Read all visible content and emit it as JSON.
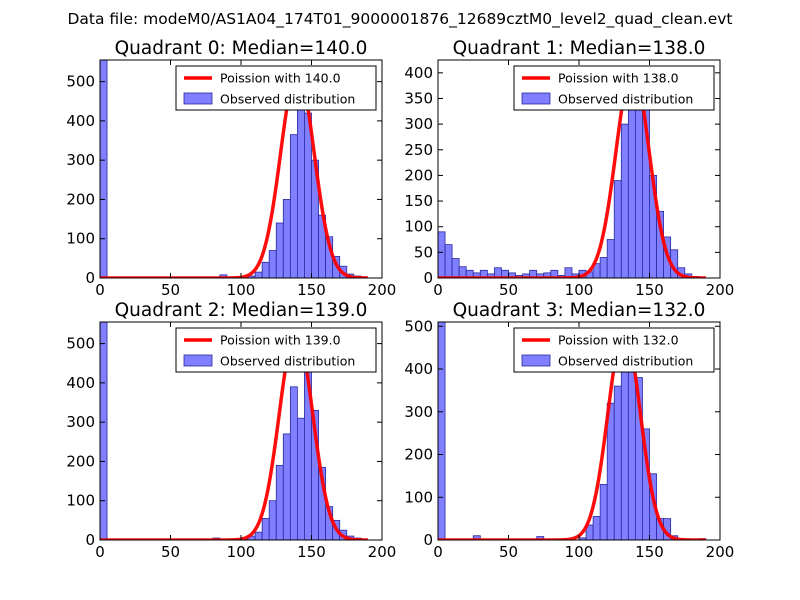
{
  "suptitle": "Data file: modeM0/AS1A04_174T01_9000001876_12689cztM0_level2_quad_clean.evt",
  "colors": {
    "fit_line": "#ff0000",
    "bar_fill": "#7f7fff",
    "bar_edge": "#2a2aa0"
  },
  "chart_data": [
    {
      "type": "bar",
      "title": "Quadrant 0: Median=140.0",
      "xlim": [
        0,
        200
      ],
      "ylim": [
        0,
        555
      ],
      "xticks": [
        0,
        50,
        100,
        150,
        200
      ],
      "yticks": [
        0,
        100,
        200,
        300,
        400,
        500
      ],
      "bin_width": 5,
      "bins": [
        {
          "x": 0,
          "y": 555
        },
        {
          "x": 85,
          "y": 8
        },
        {
          "x": 105,
          "y": 5
        },
        {
          "x": 110,
          "y": 15
        },
        {
          "x": 115,
          "y": 40
        },
        {
          "x": 120,
          "y": 70
        },
        {
          "x": 125,
          "y": 140
        },
        {
          "x": 130,
          "y": 200
        },
        {
          "x": 135,
          "y": 365
        },
        {
          "x": 140,
          "y": 530
        },
        {
          "x": 145,
          "y": 420
        },
        {
          "x": 150,
          "y": 300
        },
        {
          "x": 155,
          "y": 160
        },
        {
          "x": 160,
          "y": 105
        },
        {
          "x": 165,
          "y": 55
        },
        {
          "x": 170,
          "y": 30
        },
        {
          "x": 175,
          "y": 10
        },
        {
          "x": 180,
          "y": 5
        }
      ],
      "poisson_mean": 140.0,
      "poisson_peak": 528,
      "legend": [
        "Poission with 140.0",
        "Observed distribution"
      ]
    },
    {
      "type": "bar",
      "title": "Quadrant 1: Median=138.0",
      "xlim": [
        0,
        200
      ],
      "ylim": [
        0,
        425
      ],
      "xticks": [
        0,
        50,
        100,
        150,
        200
      ],
      "yticks": [
        0,
        50,
        100,
        150,
        200,
        250,
        300,
        350,
        400
      ],
      "bin_width": 5,
      "bins": [
        {
          "x": 0,
          "y": 90
        },
        {
          "x": 5,
          "y": 65
        },
        {
          "x": 10,
          "y": 38
        },
        {
          "x": 15,
          "y": 22
        },
        {
          "x": 20,
          "y": 15
        },
        {
          "x": 25,
          "y": 10
        },
        {
          "x": 30,
          "y": 15
        },
        {
          "x": 35,
          "y": 8
        },
        {
          "x": 40,
          "y": 20
        },
        {
          "x": 45,
          "y": 15
        },
        {
          "x": 50,
          "y": 10
        },
        {
          "x": 55,
          "y": 5
        },
        {
          "x": 60,
          "y": 8
        },
        {
          "x": 65,
          "y": 15
        },
        {
          "x": 70,
          "y": 8
        },
        {
          "x": 75,
          "y": 10
        },
        {
          "x": 80,
          "y": 15
        },
        {
          "x": 85,
          "y": 5
        },
        {
          "x": 90,
          "y": 20
        },
        {
          "x": 95,
          "y": 8
        },
        {
          "x": 100,
          "y": 15
        },
        {
          "x": 105,
          "y": 12
        },
        {
          "x": 110,
          "y": 28
        },
        {
          "x": 115,
          "y": 40
        },
        {
          "x": 120,
          "y": 75
        },
        {
          "x": 125,
          "y": 190
        },
        {
          "x": 130,
          "y": 300
        },
        {
          "x": 135,
          "y": 400
        },
        {
          "x": 140,
          "y": 375
        },
        {
          "x": 145,
          "y": 340
        },
        {
          "x": 150,
          "y": 200
        },
        {
          "x": 155,
          "y": 130
        },
        {
          "x": 160,
          "y": 80
        },
        {
          "x": 165,
          "y": 55
        },
        {
          "x": 170,
          "y": 20
        },
        {
          "x": 175,
          "y": 8
        },
        {
          "x": 180,
          "y": 3
        }
      ],
      "poisson_mean": 138.0,
      "poisson_peak": 408,
      "legend": [
        "Poission with 138.0",
        "Observed distribution"
      ]
    },
    {
      "type": "bar",
      "title": "Quadrant 2: Median=139.0",
      "xlim": [
        0,
        200
      ],
      "ylim": [
        0,
        555
      ],
      "xticks": [
        0,
        50,
        100,
        150,
        200
      ],
      "yticks": [
        0,
        100,
        200,
        300,
        400,
        500
      ],
      "bin_width": 5,
      "bins": [
        {
          "x": 0,
          "y": 555
        },
        {
          "x": 80,
          "y": 5
        },
        {
          "x": 100,
          "y": 3
        },
        {
          "x": 105,
          "y": 10
        },
        {
          "x": 110,
          "y": 20
        },
        {
          "x": 115,
          "y": 55
        },
        {
          "x": 120,
          "y": 100
        },
        {
          "x": 125,
          "y": 190
        },
        {
          "x": 130,
          "y": 270
        },
        {
          "x": 135,
          "y": 390
        },
        {
          "x": 140,
          "y": 310
        },
        {
          "x": 145,
          "y": 470
        },
        {
          "x": 150,
          "y": 330
        },
        {
          "x": 155,
          "y": 185
        },
        {
          "x": 160,
          "y": 85
        },
        {
          "x": 165,
          "y": 50
        },
        {
          "x": 170,
          "y": 25
        },
        {
          "x": 175,
          "y": 10
        },
        {
          "x": 180,
          "y": 5
        }
      ],
      "poisson_mean": 139.0,
      "poisson_peak": 533,
      "legend": [
        "Poission with 139.0",
        "Observed distribution"
      ]
    },
    {
      "type": "bar",
      "title": "Quadrant 3: Median=132.0",
      "xlim": [
        0,
        200
      ],
      "ylim": [
        0,
        510
      ],
      "xticks": [
        0,
        50,
        100,
        150,
        200
      ],
      "yticks": [
        0,
        100,
        200,
        300,
        400,
        500
      ],
      "bin_width": 5,
      "bins": [
        {
          "x": 0,
          "y": 510
        },
        {
          "x": 25,
          "y": 10
        },
        {
          "x": 70,
          "y": 8
        },
        {
          "x": 100,
          "y": 5
        },
        {
          "x": 105,
          "y": 35
        },
        {
          "x": 110,
          "y": 55
        },
        {
          "x": 115,
          "y": 130
        },
        {
          "x": 120,
          "y": 320
        },
        {
          "x": 125,
          "y": 360
        },
        {
          "x": 130,
          "y": 460
        },
        {
          "x": 135,
          "y": 400
        },
        {
          "x": 140,
          "y": 380
        },
        {
          "x": 145,
          "y": 260
        },
        {
          "x": 150,
          "y": 155
        },
        {
          "x": 155,
          "y": 50
        },
        {
          "x": 160,
          "y": 50
        },
        {
          "x": 165,
          "y": 10
        },
        {
          "x": 185,
          "y": 3
        }
      ],
      "poisson_mean": 132.0,
      "poisson_peak": 490,
      "legend": [
        "Poission with 132.0",
        "Observed distribution"
      ]
    }
  ]
}
